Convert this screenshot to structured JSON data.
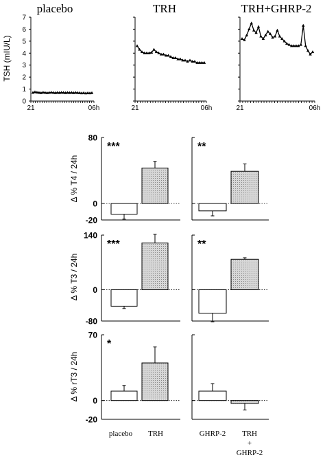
{
  "chart_data": [
    {
      "type": "line",
      "title": "placebo",
      "ylabel": "TSH (mIU/L)",
      "ylim": [
        0,
        7
      ],
      "yticks": [
        "0",
        "1",
        "2",
        "3",
        "4",
        "5",
        "6",
        "7"
      ],
      "xticks": [
        "21",
        "06h"
      ],
      "series": [
        {
          "values": [
            0.7,
            0.75,
            0.72,
            0.7,
            0.68,
            0.72,
            0.7,
            0.68,
            0.7,
            0.72,
            0.7,
            0.68,
            0.7,
            0.69,
            0.71,
            0.7,
            0.68,
            0.7,
            0.69,
            0.7,
            0.68,
            0.7,
            0.69,
            0.68,
            0.66,
            0.68,
            0.65,
            0.67,
            0.66,
            0.68
          ]
        }
      ]
    },
    {
      "type": "line",
      "title": "TRH",
      "ylim": [
        0,
        7
      ],
      "xticks": [
        "21",
        "06h"
      ],
      "series": [
        {
          "values": [
            4.6,
            4.3,
            4.1,
            4.0,
            4.0,
            4.0,
            4.05,
            4.3,
            4.1,
            4.0,
            3.9,
            3.9,
            3.8,
            3.8,
            3.7,
            3.6,
            3.6,
            3.5,
            3.5,
            3.4,
            3.4,
            3.3,
            3.4,
            3.3,
            3.3,
            3.2,
            3.2,
            3.2,
            3.2
          ]
        }
      ]
    },
    {
      "type": "line",
      "title": "TRH+GHRP-2",
      "ylim": [
        0,
        7
      ],
      "xticks": [
        "21",
        "06h"
      ],
      "series": [
        {
          "values": [
            5.2,
            5.1,
            5.5,
            6.0,
            6.5,
            5.9,
            5.7,
            6.2,
            5.4,
            5.2,
            5.5,
            5.8,
            5.6,
            5.3,
            5.4,
            5.9,
            5.4,
            5.2,
            5.0,
            4.8,
            4.7,
            4.6,
            4.6,
            4.6,
            4.6,
            4.7,
            6.3,
            4.6,
            4.2,
            3.9,
            4.1
          ]
        }
      ]
    },
    {
      "type": "bar",
      "ylabel": "Δ % T4 / 24h",
      "ylim": [
        -20,
        80
      ],
      "yticks": [
        "80",
        "0",
        "-20"
      ],
      "categories": [
        "placebo",
        "TRH",
        "GHRP-2",
        "TRH + GHRP-2"
      ],
      "values": [
        -13,
        43,
        -9,
        39
      ],
      "errors": [
        6,
        8,
        6,
        9
      ],
      "significance": [
        "***",
        "**"
      ]
    },
    {
      "type": "bar",
      "ylabel": "Δ % T3 / 24h",
      "ylim": [
        -80,
        140
      ],
      "yticks": [
        "140",
        "0",
        "-80"
      ],
      "categories": [
        "placebo",
        "TRH",
        "GHRP-2",
        "TRH + GHRP-2"
      ],
      "values": [
        -42,
        120,
        -60,
        78
      ],
      "errors": [
        6,
        22,
        22,
        4
      ],
      "significance": [
        "***",
        "**"
      ]
    },
    {
      "type": "bar",
      "ylabel": "Δ % rT3 / 24h",
      "ylim": [
        -20,
        70
      ],
      "yticks": [
        "70",
        "0",
        "-20"
      ],
      "categories": [
        "placebo",
        "TRH",
        "GHRP-2",
        "TRH + GHRP-2"
      ],
      "values": [
        10,
        40,
        10,
        -3
      ],
      "errors": [
        6,
        17,
        8,
        7
      ],
      "significance": [
        "*",
        ""
      ]
    }
  ],
  "bottom_labels": [
    "placebo",
    "TRH",
    "GHRP-2",
    "TRH",
    "+",
    "GHRP-2"
  ]
}
